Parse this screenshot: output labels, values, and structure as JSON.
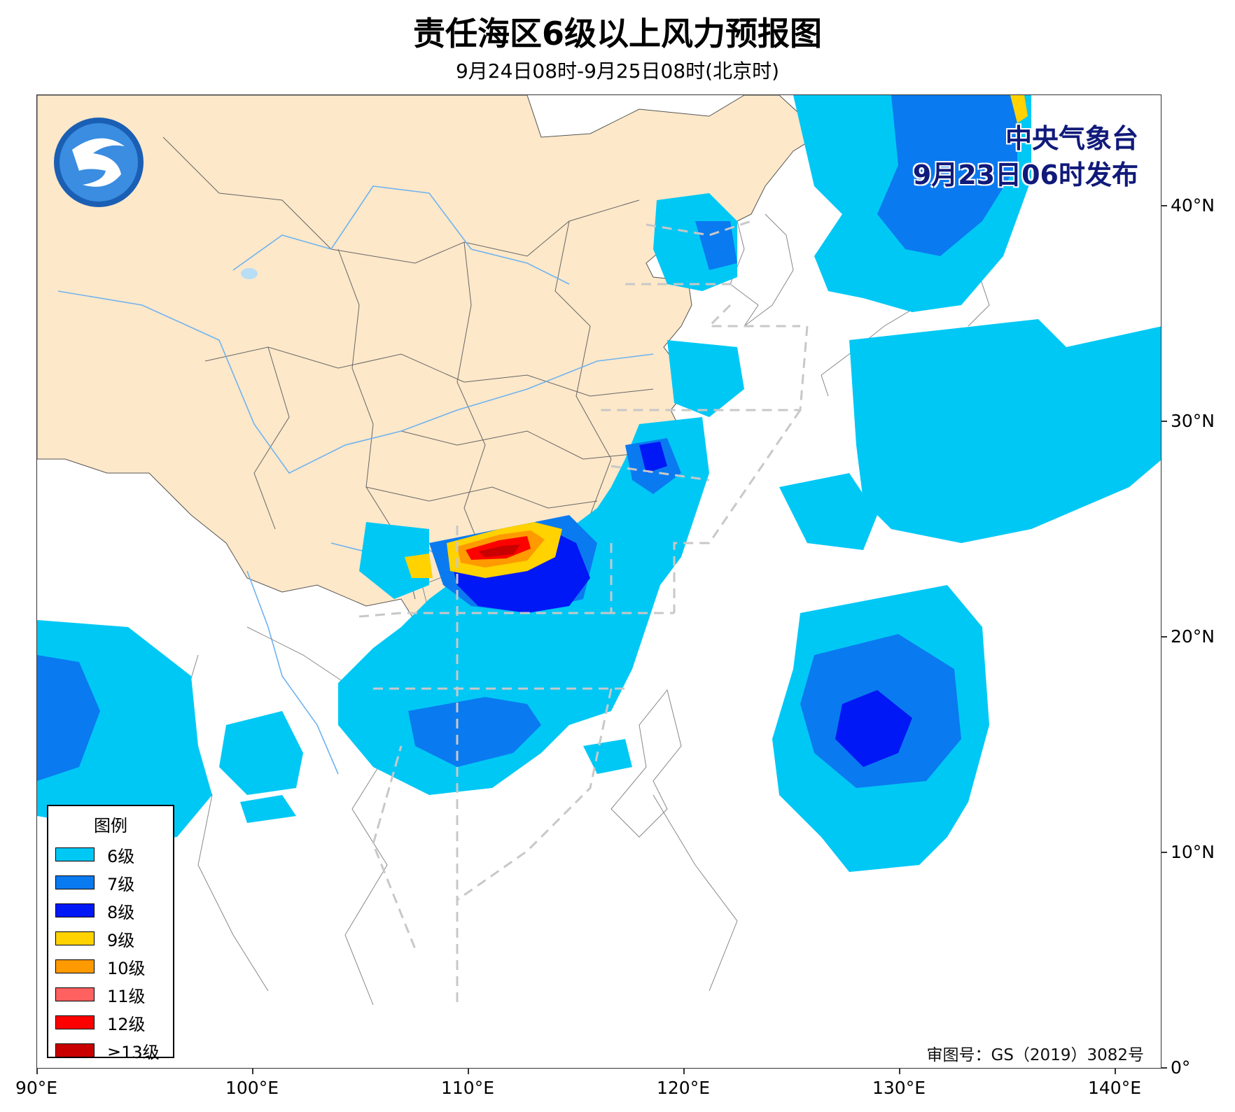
{
  "title": "责任海区6级以上风力预报图",
  "subtitle": "9月24日08时-9月25日08时(北京时)",
  "publisher": {
    "org": "中央气象台",
    "issued": "9月23日06时发布"
  },
  "review_number": "审图号：GS（2019）3082号",
  "axes": {
    "lon_labels": [
      "90°E",
      "100°E",
      "110°E",
      "120°E",
      "130°E",
      "140°E"
    ],
    "lat_labels": [
      "0°",
      "10°N",
      "20°N",
      "30°N",
      "40°N"
    ]
  },
  "legend": {
    "title": "图例",
    "items": [
      {
        "label": "6级",
        "color": "#00c8f5"
      },
      {
        "label": "7级",
        "color": "#0a7af0"
      },
      {
        "label": "8级",
        "color": "#0018f5"
      },
      {
        "label": "9级",
        "color": "#ffd200"
      },
      {
        "label": "10级",
        "color": "#ff9a00"
      },
      {
        "label": "11级",
        "color": "#ff6060"
      },
      {
        "label": "12级",
        "color": "#ff0000"
      },
      {
        "label": "≥13级",
        "color": "#c80000"
      }
    ]
  },
  "colors": {
    "land_china": "#fde8c9",
    "land_other": "#ffffff",
    "sea": "#ffffff",
    "rivers": "#6fb3f0",
    "sea_zone_lines": "#c8c8c8"
  },
  "logo_icon": "cma-logo-icon"
}
